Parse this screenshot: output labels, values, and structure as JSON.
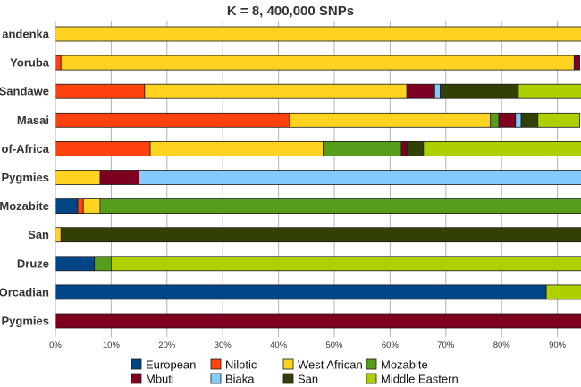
{
  "chart_data": {
    "type": "bar",
    "orientation": "horizontal",
    "stacked": true,
    "title": "K = 8, 400,000 SNPs",
    "xlabel": "",
    "ylabel": "",
    "xlim": [
      0,
      100
    ],
    "x_ticks": [
      "0%",
      "10%",
      "20%",
      "30%",
      "40%",
      "50%",
      "60%",
      "70%",
      "80%",
      "90%"
    ],
    "grid": "vertical",
    "legend_position": "bottom",
    "categories": [
      "Mandenka",
      "Yoruba",
      "Sandawe",
      "Masai",
      "Bantu-South-of-Africa",
      "Biaka Pygmies",
      "Mozabite",
      "San",
      "Druze",
      "Orcadian",
      "Mbuti Pygmies"
    ],
    "category_labels_visible": [
      "andenka",
      "Yoruba",
      "Sandawe",
      "Masai",
      "of-Africa",
      "Pygmies",
      "Mozabite",
      "San",
      "Druze",
      "Orcadian",
      "Pygmies"
    ],
    "series": [
      {
        "name": "European",
        "color": "#004586",
        "values": [
          0,
          0,
          0,
          0,
          0,
          0,
          4,
          0,
          7,
          88,
          0
        ]
      },
      {
        "name": "Nilotic",
        "color": "#ff420e",
        "values": [
          0,
          1,
          16,
          42,
          17,
          0,
          1,
          0,
          0,
          0,
          0
        ]
      },
      {
        "name": "West African",
        "color": "#ffd320",
        "values": [
          100,
          92,
          47,
          36,
          31,
          8,
          3,
          1,
          0,
          0,
          0
        ]
      },
      {
        "name": "Mozabite",
        "color": "#579d1c",
        "values": [
          0,
          0,
          0,
          1.5,
          14,
          0,
          92,
          0,
          3,
          0,
          0
        ]
      },
      {
        "name": "Mbuti",
        "color": "#7e0021",
        "values": [
          0,
          1,
          5,
          3,
          1,
          7,
          0,
          0,
          0,
          0,
          100
        ]
      },
      {
        "name": "Biaka",
        "color": "#83caff",
        "values": [
          0,
          0,
          1,
          1,
          0,
          85,
          0,
          0,
          0,
          0,
          0
        ]
      },
      {
        "name": "San",
        "color": "#314004",
        "values": [
          0,
          0,
          14,
          3,
          3,
          0,
          0,
          99,
          0,
          0,
          0
        ]
      },
      {
        "name": "Middle Eastern",
        "color": "#aecf00",
        "values": [
          0,
          0,
          17,
          7.5,
          34,
          0,
          0,
          0,
          90,
          12,
          0
        ]
      }
    ]
  }
}
